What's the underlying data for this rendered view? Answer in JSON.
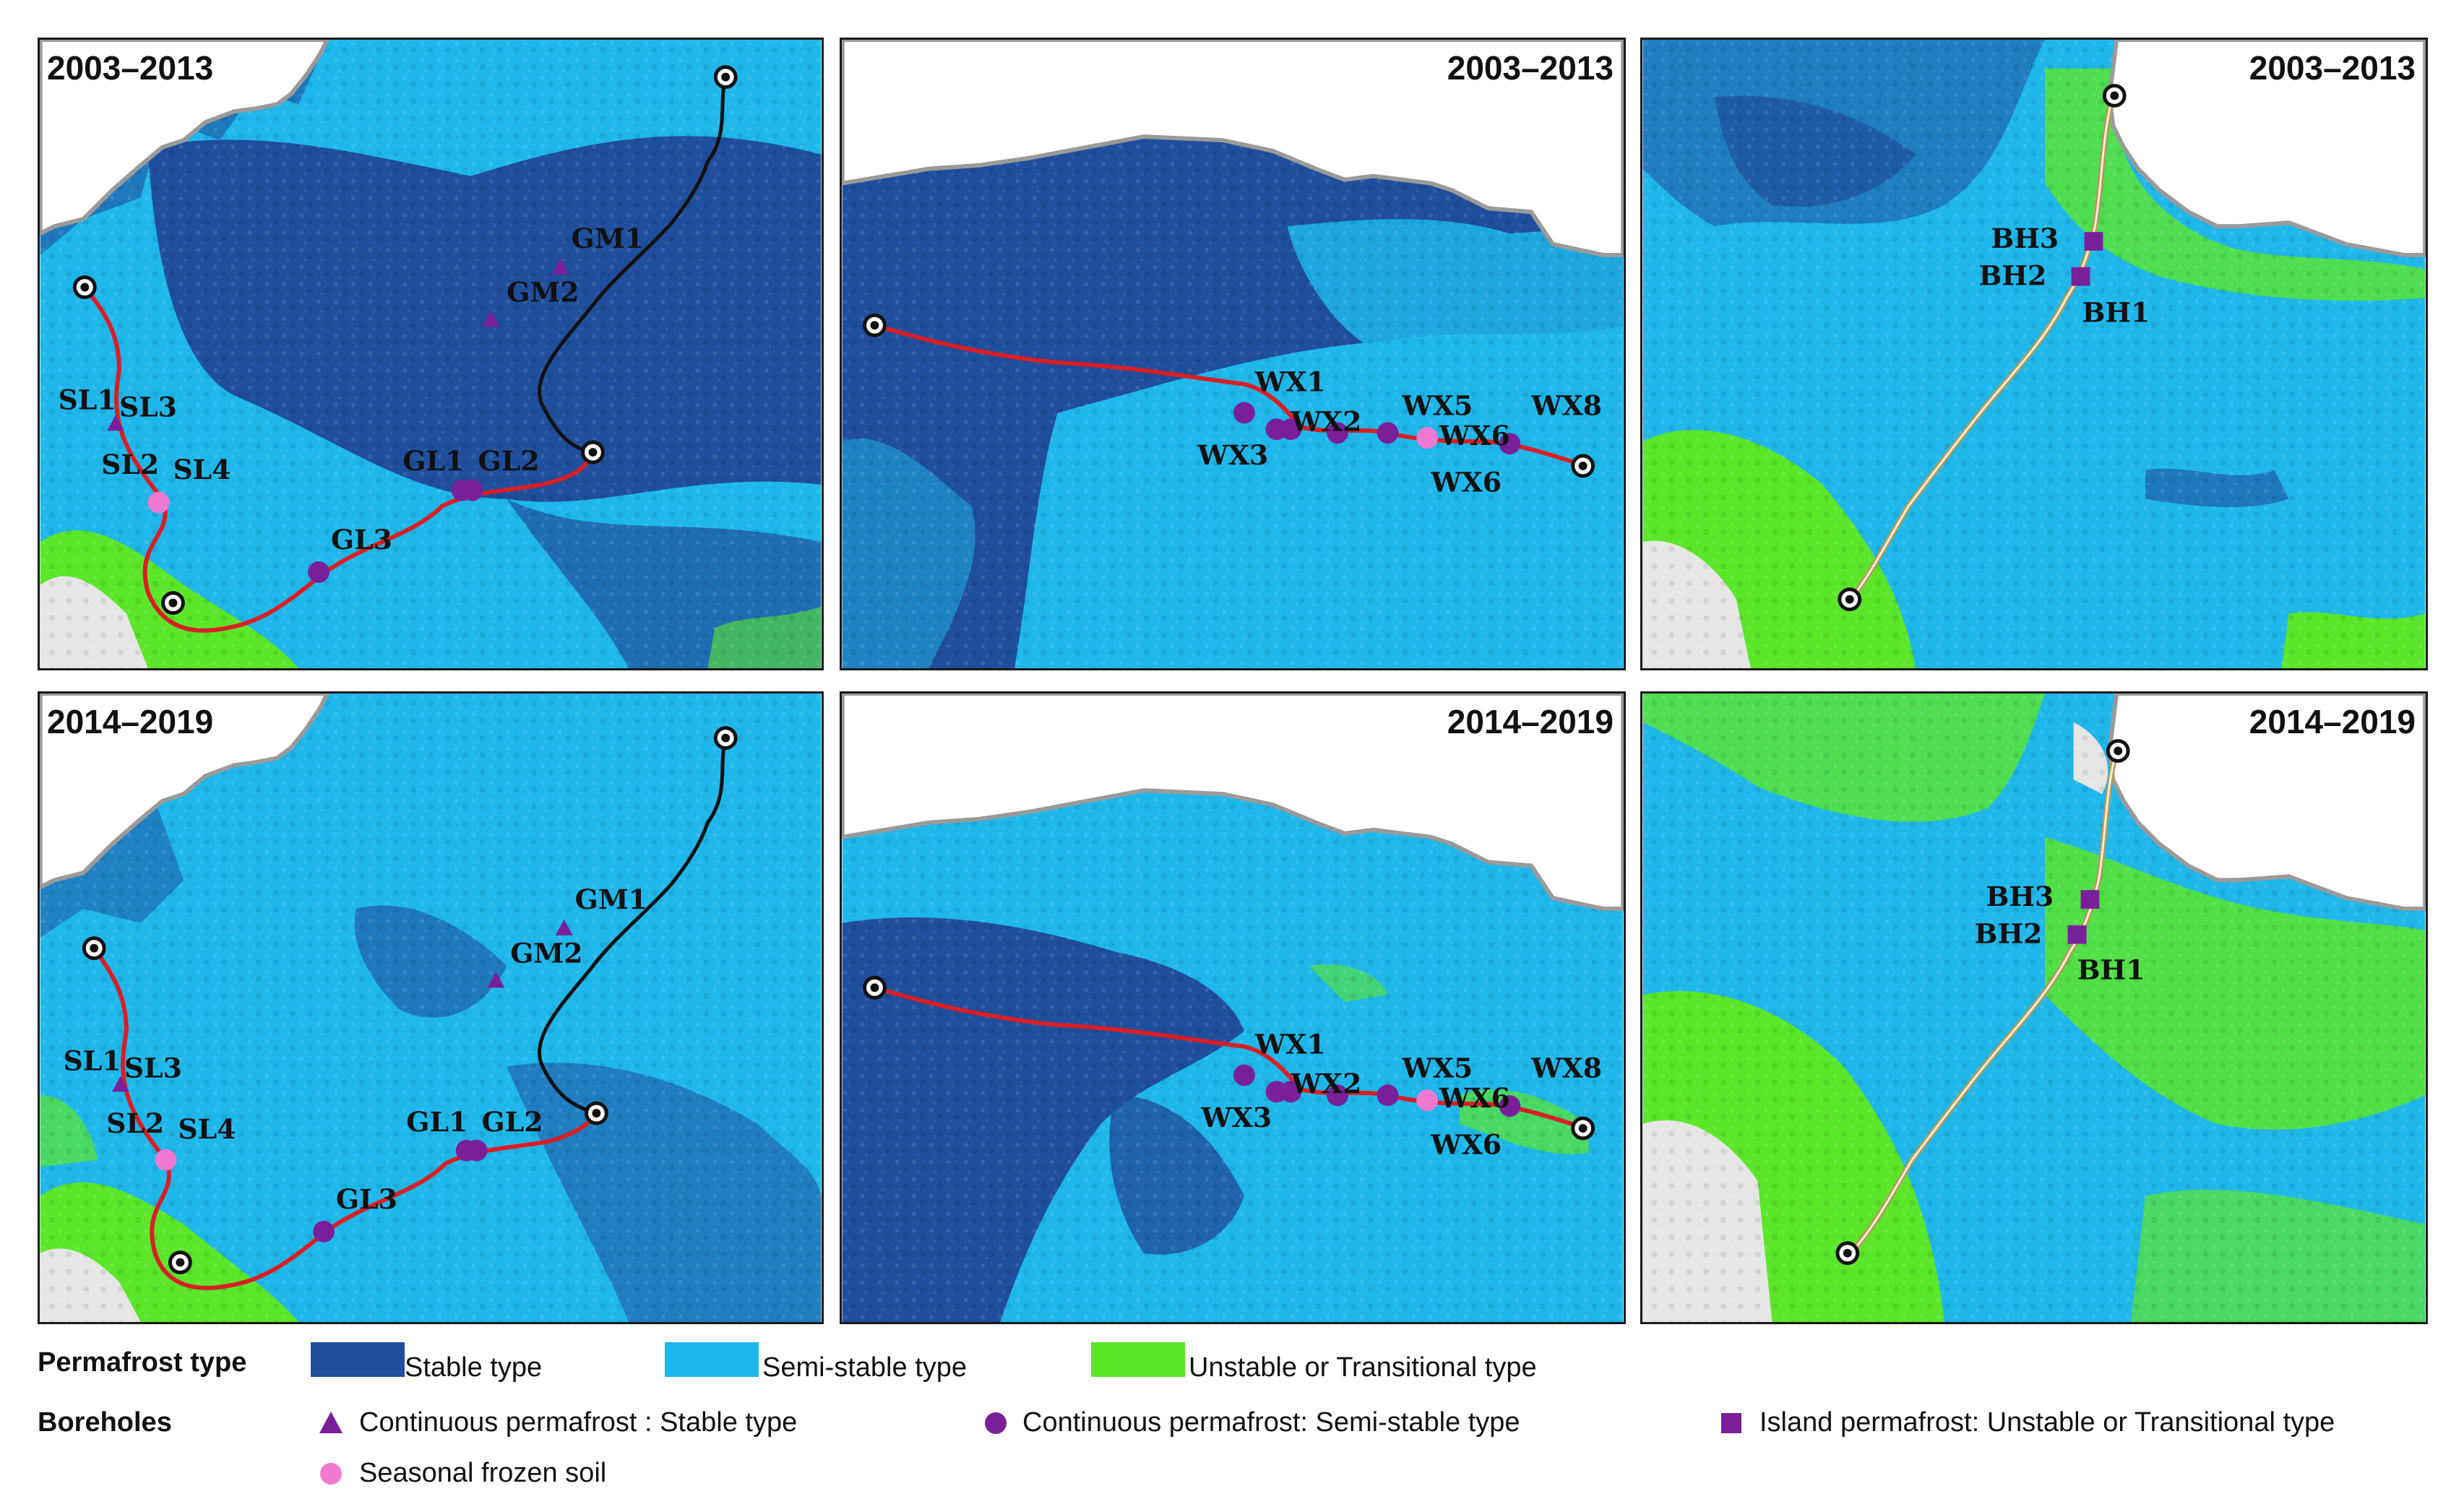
{
  "panels": [
    {
      "id": "p1",
      "title": "2003–2013",
      "title_side": "left"
    },
    {
      "id": "p2",
      "title": "2003–2013",
      "title_side": "right"
    },
    {
      "id": "p3",
      "title": "2003–2013",
      "title_side": "right"
    },
    {
      "id": "p4",
      "title": "2014–2019",
      "title_side": "left"
    },
    {
      "id": "p5",
      "title": "2014–2019",
      "title_side": "right"
    },
    {
      "id": "p6",
      "title": "2014–2019",
      "title_side": "right"
    }
  ],
  "borehole_labels": {
    "gm1": "GM1",
    "gm2": "GM2",
    "sl1": "SL1",
    "sl3": "SL3",
    "sl2": "SL2",
    "sl4": "SL4",
    "gl1": "GL1",
    "gl2": "GL2",
    "gl3": "GL3",
    "wx1": "WX1",
    "wx2": "WX2",
    "wx3": "WX3",
    "wx5": "WX5",
    "wx6a": "WX6",
    "wx6b": "WX6",
    "wx8": "WX8",
    "bh1": "BH1",
    "bh2": "BH2",
    "bh3": "BH3"
  },
  "legend": {
    "permafrost_heading": "Permafrost type",
    "stable": "Stable  type",
    "semi_stable": "Semi-stable type",
    "unstable": "Unstable or Transitional type",
    "boreholes_heading": "Boreholes",
    "continuous_stable": "Continuous permafrost : Stable type",
    "continuous_semi": "Continuous permafrost: Semi-stable type",
    "island": "Island permafrost: Unstable or Transitional type",
    "seasonal": "Seasonal frozen soil"
  },
  "colors": {
    "stable": "#1f4e9c",
    "semi_stable": "#1fb7ea",
    "unstable": "#5be62a",
    "borehole_purple": "#7a1f9a",
    "seasonal_pink": "#f07ad2",
    "route_red": "#d81f26",
    "route_black": "#111111",
    "route_gold": "#b59a52",
    "boundary_gray": "#9a9a9a"
  }
}
